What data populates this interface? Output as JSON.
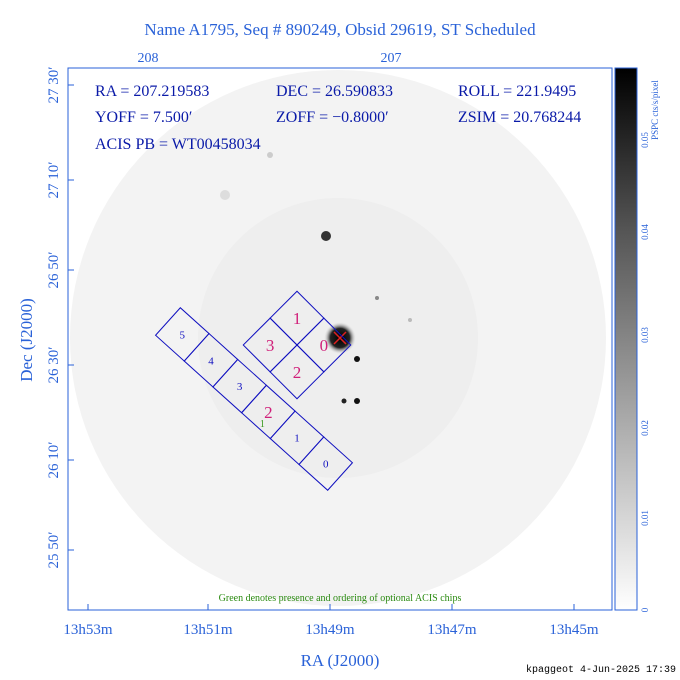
{
  "title": "Name A1795, Seq # 890249, Obsid 29619, ST Scheduled",
  "top_axis": {
    "ticks": [
      "208",
      "207"
    ]
  },
  "info": {
    "ra": "RA = 207.219583",
    "dec": "DEC = 26.590833",
    "roll": "ROLL = 221.9495",
    "yoff": "YOFF =   7.500′",
    "zoff": "ZOFF = −0.8000′",
    "zsim": "ZSIM = 20.768244",
    "acis": "ACIS PB = WT00458034"
  },
  "y_axis": {
    "label": "Dec (J2000)",
    "ticks": [
      "27 30′",
      "27 10′",
      "26 50′",
      "26 30′",
      "26 10′",
      "25 50′"
    ]
  },
  "x_axis": {
    "label": "RA (J2000)",
    "ticks": [
      "13h53m",
      "13h51m",
      "13h49m",
      "13h47m",
      "13h45m"
    ]
  },
  "colorbar": {
    "label": "PSPC cts/s/pixel",
    "ticks": [
      "0",
      "0.01",
      "0.02",
      "0.03",
      "0.04",
      "0.05"
    ]
  },
  "acis_i": {
    "chips": [
      "0",
      "1",
      "2",
      "3"
    ]
  },
  "acis_s": {
    "chips": [
      "5",
      "4",
      "3",
      "2",
      "1",
      "0"
    ],
    "optional": "1"
  },
  "note": "Green denotes presence and ordering of optional ACIS chips",
  "footer": "kpaggeot  4-Jun-2025 17:39"
}
